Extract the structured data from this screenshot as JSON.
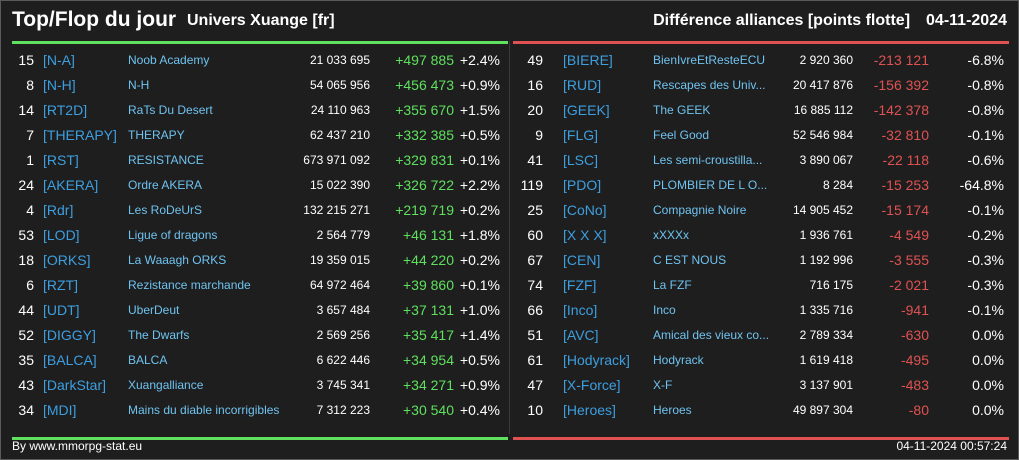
{
  "header": {
    "title": "Top/Flop du jour",
    "universe": "Univers Xuange [fr]",
    "metric": "Différence alliances [points flotte]",
    "date": "04-11-2024"
  },
  "colors": {
    "top_accent": "#5fe05f",
    "flop_accent": "#e05252",
    "tag": "#3d9fe0",
    "name": "#6fc3f0",
    "background": "#1e1e1e"
  },
  "top": [
    {
      "rank": "15",
      "tag": "[N-A]",
      "name": "Noob Academy",
      "points": "21 033 695",
      "diff": "+497 885",
      "pct": "+2.4%"
    },
    {
      "rank": "8",
      "tag": "[N-H]",
      "name": "N-H",
      "points": "54 065 956",
      "diff": "+456 473",
      "pct": "+0.9%"
    },
    {
      "rank": "14",
      "tag": "[RT2D]",
      "name": "RaTs Du Desert",
      "points": "24 110 963",
      "diff": "+355 670",
      "pct": "+1.5%"
    },
    {
      "rank": "7",
      "tag": "[THERAPY]",
      "name": "THERAPY",
      "points": "62 437 210",
      "diff": "+332 385",
      "pct": "+0.5%"
    },
    {
      "rank": "1",
      "tag": "[RST]",
      "name": "RESISTANCE",
      "points": "673 971 092",
      "diff": "+329 831",
      "pct": "+0.1%"
    },
    {
      "rank": "24",
      "tag": "[AKERA]",
      "name": "Ordre AKERA",
      "points": "15 022 390",
      "diff": "+326 722",
      "pct": "+2.2%"
    },
    {
      "rank": "4",
      "tag": "[Rdr]",
      "name": "Les RoDeUrS",
      "points": "132 215 271",
      "diff": "+219 719",
      "pct": "+0.2%"
    },
    {
      "rank": "53",
      "tag": "[LOD]",
      "name": "Ligue of dragons",
      "points": "2 564 779",
      "diff": "+46 131",
      "pct": "+1.8%"
    },
    {
      "rank": "18",
      "tag": "[ORKS]",
      "name": "La Waaagh ORKS",
      "points": "19 359 015",
      "diff": "+44 220",
      "pct": "+0.2%"
    },
    {
      "rank": "6",
      "tag": "[RZT]",
      "name": "Rezistance marchande",
      "points": "64 972 464",
      "diff": "+39 860",
      "pct": "+0.1%"
    },
    {
      "rank": "44",
      "tag": "[UDT]",
      "name": "UberDeut",
      "points": "3 657 484",
      "diff": "+37 131",
      "pct": "+1.0%"
    },
    {
      "rank": "52",
      "tag": "[DIGGY]",
      "name": "The Dwarfs",
      "points": "2 569 256",
      "diff": "+35 417",
      "pct": "+1.4%"
    },
    {
      "rank": "35",
      "tag": "[BALCA]",
      "name": "BALCA",
      "points": "6 622 446",
      "diff": "+34 954",
      "pct": "+0.5%"
    },
    {
      "rank": "43",
      "tag": "[DarkStar]",
      "name": "Xuangalliance",
      "points": "3 745 341",
      "diff": "+34 271",
      "pct": "+0.9%"
    },
    {
      "rank": "34",
      "tag": "[MDI]",
      "name": "Mains du diable incorrigibles",
      "points": "7 312 223",
      "diff": "+30 540",
      "pct": "+0.4%"
    }
  ],
  "flop": [
    {
      "rank": "49",
      "tag": "[BIERE]",
      "name": "BienIvreEtResteECU",
      "points": "2 920 360",
      "diff": "-213 121",
      "pct": "-6.8%"
    },
    {
      "rank": "16",
      "tag": "[RUD]",
      "name": "Rescapes des Univ...",
      "points": "20 417 876",
      "diff": "-156 392",
      "pct": "-0.8%"
    },
    {
      "rank": "20",
      "tag": "[GEEK]",
      "name": "The GEEK",
      "points": "16 885 112",
      "diff": "-142 378",
      "pct": "-0.8%"
    },
    {
      "rank": "9",
      "tag": "[FLG]",
      "name": "Feel Good",
      "points": "52 546 984",
      "diff": "-32 810",
      "pct": "-0.1%"
    },
    {
      "rank": "41",
      "tag": "[LSC]",
      "name": "Les semi-croustilla...",
      "points": "3 890 067",
      "diff": "-22 118",
      "pct": "-0.6%"
    },
    {
      "rank": "119",
      "tag": "[PDO]",
      "name": "PLOMBIER DE L O...",
      "points": "8 284",
      "diff": "-15 253",
      "pct": "-64.8%"
    },
    {
      "rank": "25",
      "tag": "[CoNo]",
      "name": "Compagnie Noire",
      "points": "14 905 452",
      "diff": "-15 174",
      "pct": "-0.1%"
    },
    {
      "rank": "60",
      "tag": "[X X X]",
      "name": "xXXXx",
      "points": "1 936 761",
      "diff": "-4 549",
      "pct": "-0.2%"
    },
    {
      "rank": "67",
      "tag": "[CEN]",
      "name": "C EST NOUS",
      "points": "1 192 996",
      "diff": "-3 555",
      "pct": "-0.3%"
    },
    {
      "rank": "74",
      "tag": "[FZF]",
      "name": "La FZF",
      "points": "716 175",
      "diff": "-2 021",
      "pct": "-0.3%"
    },
    {
      "rank": "66",
      "tag": "[Inco]",
      "name": "Inco",
      "points": "1 335 716",
      "diff": "-941",
      "pct": "-0.1%"
    },
    {
      "rank": "51",
      "tag": "[AVC]",
      "name": "Amical des vieux co...",
      "points": "2 789 334",
      "diff": "-630",
      "pct": "0.0%"
    },
    {
      "rank": "61",
      "tag": "[Hodyrack]",
      "name": "Hodyrack",
      "points": "1 619 418",
      "diff": "-495",
      "pct": "0.0%"
    },
    {
      "rank": "47",
      "tag": "[X-Force]",
      "name": "X-F",
      "points": "3 137 901",
      "diff": "-483",
      "pct": "0.0%"
    },
    {
      "rank": "10",
      "tag": "[Heroes]",
      "name": "Heroes",
      "points": "49 897 304",
      "diff": "-80",
      "pct": "0.0%"
    }
  ],
  "footer": {
    "credit": "By www.mmorpg-stat.eu",
    "timestamp": "04-11-2024 00:57:24"
  }
}
